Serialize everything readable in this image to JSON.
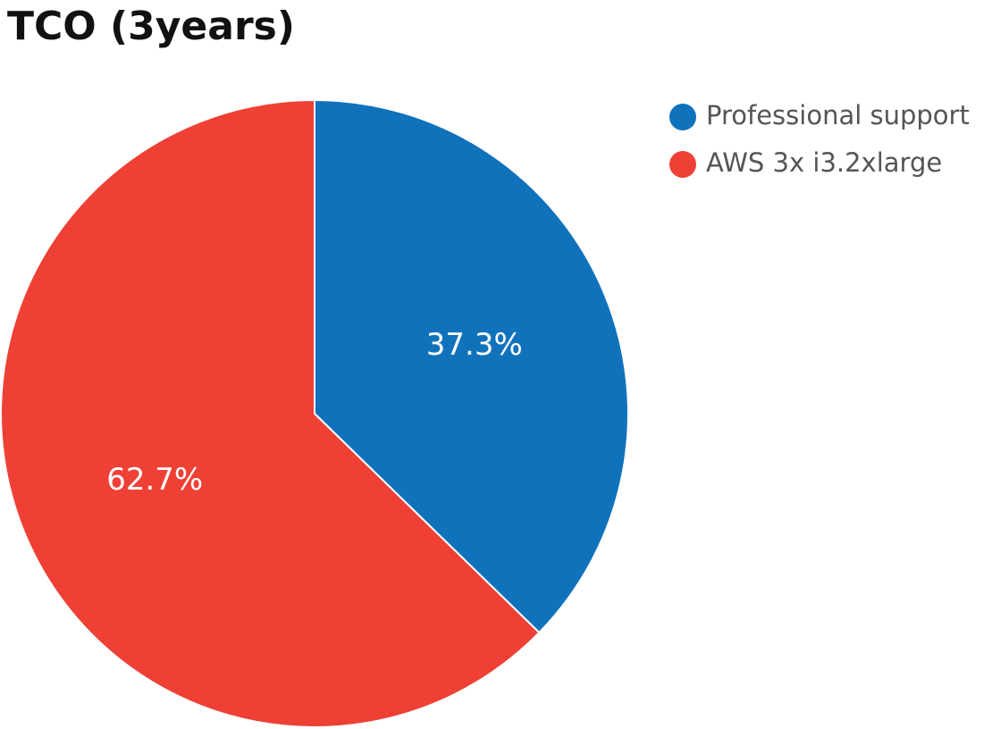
{
  "chart_data": {
    "type": "pie",
    "title": "TCO (3years)",
    "categories": [
      "Professional support",
      "AWS 3x i3.2xlarge"
    ],
    "values": [
      37.3,
      62.7
    ],
    "value_labels": [
      "37.3%",
      "62.7%"
    ],
    "colors": [
      "#1172bc",
      "#ee4035"
    ],
    "legend": "top-right"
  }
}
